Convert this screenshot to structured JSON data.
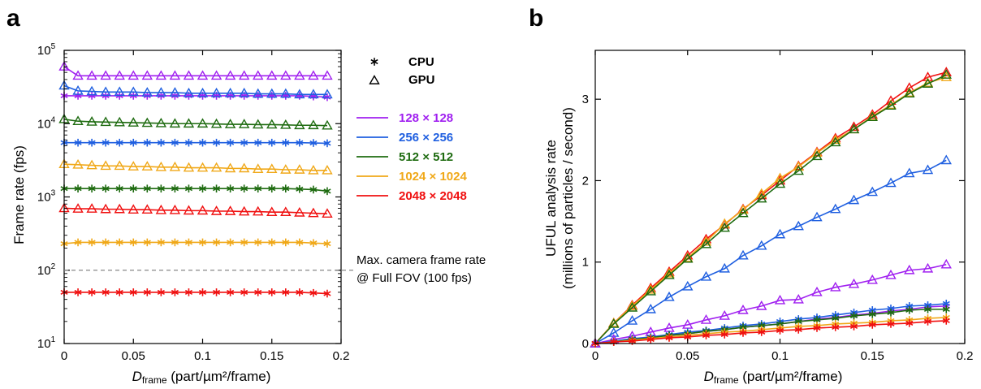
{
  "chart_data": [
    {
      "panel": "a",
      "type": "line",
      "xlabel_main": "D",
      "xlabel_sub": "frame",
      "xlabel_rest": " (part/µm²/frame)",
      "ylabel": "Frame rate (fps)",
      "y_scale": "log",
      "xlim": [
        0,
        0.2
      ],
      "ylim": [
        10,
        100000
      ],
      "xticks": [
        0,
        0.05,
        0.1,
        0.15,
        0.2
      ],
      "xtick_labels": [
        "0",
        "0.05",
        "0.1",
        "0.15",
        "0.2"
      ],
      "yticks": [
        10,
        100,
        1000,
        10000,
        100000
      ],
      "ytick_base": "10",
      "ytick_exps": [
        "1",
        "2",
        "3",
        "4",
        "5"
      ],
      "grid": false,
      "x": [
        0,
        0.01,
        0.02,
        0.03,
        0.04,
        0.05,
        0.06,
        0.07,
        0.08,
        0.09,
        0.1,
        0.11,
        0.12,
        0.13,
        0.14,
        0.15,
        0.16,
        0.17,
        0.18,
        0.19
      ],
      "series": [
        {
          "size": "128 × 128",
          "proc": "GPU",
          "color": "#a020f0",
          "values": [
            60000,
            45000,
            45000,
            45000,
            45000,
            45000,
            45000,
            45000,
            45000,
            45000,
            45000,
            45000,
            45000,
            45000,
            45000,
            45000,
            45000,
            45000,
            45000,
            45000
          ]
        },
        {
          "size": "128 × 128",
          "proc": "CPU",
          "color": "#a020f0",
          "values": [
            24000,
            24000,
            24000,
            24000,
            24000,
            24000,
            24000,
            24000,
            24000,
            24000,
            24000,
            24000,
            24000,
            24000,
            24000,
            24000,
            24000,
            24000,
            23500,
            23000
          ]
        },
        {
          "size": "256 × 256",
          "proc": "GPU",
          "color": "#1f5fe0",
          "values": [
            33000,
            28000,
            27500,
            27000,
            27000,
            27000,
            26500,
            26500,
            26500,
            26000,
            26000,
            26000,
            26000,
            26000,
            25500,
            25500,
            25500,
            25000,
            25000,
            25000
          ]
        },
        {
          "size": "256 × 256",
          "proc": "CPU",
          "color": "#1f5fe0",
          "values": [
            5500,
            5500,
            5500,
            5500,
            5500,
            5500,
            5500,
            5500,
            5500,
            5500,
            5500,
            5500,
            5500,
            5500,
            5500,
            5500,
            5500,
            5500,
            5450,
            5400
          ]
        },
        {
          "size": "512 × 512",
          "proc": "GPU",
          "color": "#1e6b10",
          "values": [
            11500,
            10800,
            10600,
            10500,
            10400,
            10300,
            10200,
            10100,
            10000,
            10000,
            10000,
            9900,
            9800,
            9800,
            9700,
            9700,
            9600,
            9500,
            9500,
            9400
          ]
        },
        {
          "size": "512 × 512",
          "proc": "CPU",
          "color": "#1e6b10",
          "values": [
            1300,
            1300,
            1300,
            1300,
            1300,
            1300,
            1300,
            1300,
            1300,
            1300,
            1300,
            1300,
            1300,
            1300,
            1300,
            1300,
            1300,
            1280,
            1260,
            1200
          ]
        },
        {
          "size": "1024 × 1024",
          "proc": "GPU",
          "color": "#f0a818",
          "values": [
            2800,
            2750,
            2700,
            2650,
            2650,
            2600,
            2600,
            2550,
            2550,
            2500,
            2500,
            2500,
            2450,
            2450,
            2400,
            2400,
            2350,
            2350,
            2300,
            2300
          ]
        },
        {
          "size": "1024 × 1024",
          "proc": "CPU",
          "color": "#f0a818",
          "values": [
            230,
            240,
            240,
            240,
            240,
            240,
            240,
            240,
            240,
            240,
            240,
            240,
            240,
            240,
            240,
            240,
            240,
            240,
            235,
            230
          ]
        },
        {
          "size": "2048 × 2048",
          "proc": "GPU",
          "color": "#f01010",
          "values": [
            700,
            690,
            690,
            680,
            680,
            670,
            670,
            660,
            660,
            650,
            650,
            640,
            640,
            630,
            630,
            620,
            620,
            610,
            600,
            590
          ]
        },
        {
          "size": "2048 × 2048",
          "proc": "CPU",
          "color": "#f01010",
          "values": [
            50,
            50,
            50,
            50,
            50,
            50,
            50,
            50,
            50,
            50,
            50,
            50,
            50,
            50,
            50,
            50,
            50,
            50,
            49,
            48
          ]
        }
      ],
      "reference_line": {
        "y": 100,
        "style": "dashed",
        "label_line1": "Max. camera frame rate",
        "label_line2": "@ Full FOV (100 fps)"
      }
    },
    {
      "panel": "b",
      "type": "line",
      "xlabel_main": "D",
      "xlabel_sub": "frame",
      "xlabel_rest": " (part/µm²/frame)",
      "ylabel_line1": "UFUL analysis rate",
      "ylabel_line2": "(millions of particles / second)",
      "y_scale": "linear",
      "xlim": [
        0,
        0.2
      ],
      "ylim": [
        0,
        3.6
      ],
      "xticks": [
        0,
        0.05,
        0.1,
        0.15,
        0.2
      ],
      "xtick_labels": [
        "0",
        "0.05",
        "0.1",
        "0.15",
        "0.2"
      ],
      "yticks": [
        0,
        1,
        2,
        3
      ],
      "ytick_labels": [
        "0",
        "1",
        "2",
        "3"
      ],
      "grid": false,
      "x": [
        0,
        0.01,
        0.02,
        0.03,
        0.04,
        0.05,
        0.06,
        0.07,
        0.08,
        0.09,
        0.1,
        0.11,
        0.12,
        0.13,
        0.14,
        0.15,
        0.16,
        0.17,
        0.18,
        0.19
      ],
      "series": [
        {
          "size": "2048 × 2048",
          "proc": "GPU",
          "color": "#f01010",
          "values": [
            0,
            0.25,
            0.47,
            0.68,
            0.88,
            1.08,
            1.28,
            1.46,
            1.65,
            1.82,
            2.0,
            2.18,
            2.35,
            2.52,
            2.66,
            2.81,
            2.98,
            3.14,
            3.27,
            3.33
          ]
        },
        {
          "size": "1024 × 1024",
          "proc": "GPU",
          "color": "#f0a818",
          "values": [
            0,
            0.25,
            0.46,
            0.66,
            0.86,
            1.05,
            1.25,
            1.47,
            1.64,
            1.84,
            2.03,
            2.17,
            2.34,
            2.5,
            2.63,
            2.79,
            2.93,
            3.08,
            3.2,
            3.27
          ]
        },
        {
          "size": "512 × 512",
          "proc": "GPU",
          "color": "#1e6b10",
          "values": [
            0,
            0.24,
            0.44,
            0.64,
            0.84,
            1.04,
            1.22,
            1.42,
            1.6,
            1.78,
            1.96,
            2.12,
            2.3,
            2.47,
            2.63,
            2.78,
            2.92,
            3.07,
            3.19,
            3.3
          ]
        },
        {
          "size": "256 × 256",
          "proc": "GPU",
          "color": "#1f5fe0",
          "values": [
            0,
            0.13,
            0.28,
            0.42,
            0.57,
            0.7,
            0.82,
            0.92,
            1.08,
            1.2,
            1.34,
            1.44,
            1.55,
            1.65,
            1.76,
            1.86,
            1.97,
            2.09,
            2.13,
            2.25
          ]
        },
        {
          "size": "128 × 128",
          "proc": "GPU",
          "color": "#a020f0",
          "values": [
            0,
            0.05,
            0.09,
            0.14,
            0.19,
            0.23,
            0.29,
            0.34,
            0.41,
            0.46,
            0.53,
            0.54,
            0.63,
            0.69,
            0.73,
            0.78,
            0.84,
            0.9,
            0.92,
            0.97
          ]
        },
        {
          "size": "128 × 128",
          "proc": "CPU",
          "color": "#a020f0",
          "values": [
            0,
            0.02,
            0.05,
            0.07,
            0.1,
            0.12,
            0.15,
            0.17,
            0.2,
            0.22,
            0.24,
            0.27,
            0.3,
            0.32,
            0.35,
            0.37,
            0.4,
            0.42,
            0.45,
            0.46
          ]
        },
        {
          "size": "256 × 256",
          "proc": "CPU",
          "color": "#1f5fe0",
          "values": [
            0,
            0.03,
            0.06,
            0.08,
            0.11,
            0.14,
            0.16,
            0.19,
            0.22,
            0.24,
            0.27,
            0.3,
            0.32,
            0.35,
            0.38,
            0.41,
            0.43,
            0.46,
            0.47,
            0.49
          ]
        },
        {
          "size": "512 × 512",
          "proc": "CPU",
          "color": "#1e6b10",
          "values": [
            0,
            0.02,
            0.05,
            0.07,
            0.1,
            0.12,
            0.15,
            0.17,
            0.2,
            0.22,
            0.24,
            0.27,
            0.29,
            0.31,
            0.34,
            0.36,
            0.38,
            0.41,
            0.42,
            0.42
          ]
        },
        {
          "size": "1024 × 1024",
          "proc": "CPU",
          "color": "#f0a818",
          "values": [
            0,
            0.02,
            0.04,
            0.06,
            0.08,
            0.1,
            0.12,
            0.14,
            0.15,
            0.17,
            0.19,
            0.21,
            0.22,
            0.24,
            0.25,
            0.26,
            0.28,
            0.29,
            0.31,
            0.32
          ]
        },
        {
          "size": "2048 × 2048",
          "proc": "CPU",
          "color": "#f01010",
          "values": [
            0,
            0.02,
            0.03,
            0.05,
            0.07,
            0.08,
            0.1,
            0.11,
            0.13,
            0.14,
            0.16,
            0.17,
            0.19,
            0.2,
            0.21,
            0.23,
            0.24,
            0.25,
            0.27,
            0.28
          ]
        }
      ]
    }
  ],
  "legend": {
    "markers": [
      {
        "label": "CPU",
        "marker": "asterisk"
      },
      {
        "label": "GPU",
        "marker": "triangle"
      }
    ],
    "sizes": [
      {
        "label": "128 × 128",
        "color": "#a020f0"
      },
      {
        "label": "256 × 256",
        "color": "#1f5fe0"
      },
      {
        "label": "512 × 512",
        "color": "#1e6b10"
      },
      {
        "label": "1024 × 1024",
        "color": "#f0a818"
      },
      {
        "label": "2048 × 2048",
        "color": "#f01010"
      }
    ]
  }
}
